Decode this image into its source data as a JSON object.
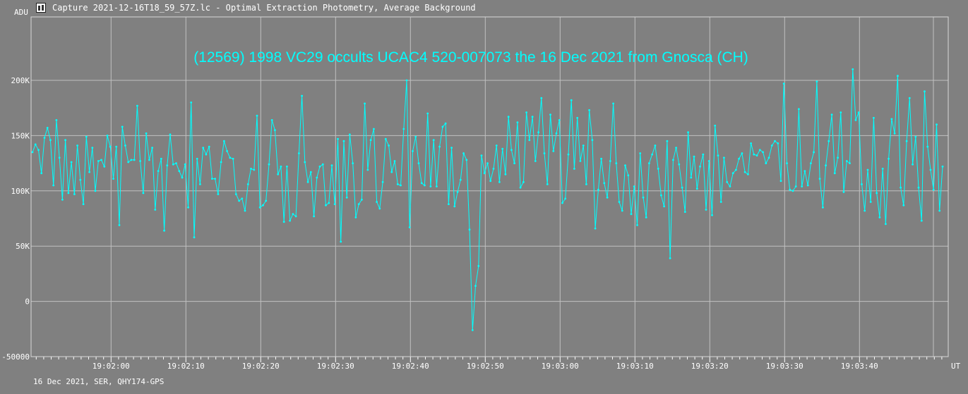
{
  "window": {
    "title": "Capture 2021-12-16T18_59_57Z.lc - Optimal Extraction Photometry, Average Background",
    "icon": "app-logo-icon"
  },
  "colors": {
    "background": "#808080",
    "grid": "#c0c0c0",
    "series": "#00ffff",
    "text": "#ffffff"
  },
  "footer": "16 Dec 2021, SER, QHY174-GPS",
  "chart_data": {
    "type": "line",
    "title": "(12569) 1998 VC29 occults UCAC4 520-007073 the 16 Dec 2021 from Gnosca (CH)",
    "ylabel": "ADU",
    "xlabel": "UT",
    "ylim": [
      -50000,
      255000
    ],
    "xlim": [
      0,
      244
    ],
    "y_ticks": [
      {
        "v": -50000,
        "label": "-50000"
      },
      {
        "v": 0,
        "label": "0"
      },
      {
        "v": 50000,
        "label": "50K"
      },
      {
        "v": 100000,
        "label": "100K"
      },
      {
        "v": 150000,
        "label": "150K"
      },
      {
        "v": 200000,
        "label": "200K"
      }
    ],
    "x_ticks": [
      {
        "v": 21,
        "label": "19:02:00"
      },
      {
        "v": 41,
        "label": "19:02:10"
      },
      {
        "v": 61,
        "label": "19:02:20"
      },
      {
        "v": 81,
        "label": "19:02:30"
      },
      {
        "v": 101,
        "label": "19:02:40"
      },
      {
        "v": 121,
        "label": "19:02:50"
      },
      {
        "v": 141,
        "label": "19:03:00"
      },
      {
        "v": 161,
        "label": "19:03:10"
      },
      {
        "v": 181,
        "label": "19:03:20"
      },
      {
        "v": 201,
        "label": "19:03:30"
      },
      {
        "v": 221,
        "label": "19:03:40"
      }
    ],
    "x_minor_ticks": [
      1,
      3,
      5,
      7,
      9,
      11,
      13,
      15,
      17,
      19,
      23,
      25,
      27,
      29,
      31,
      33,
      35,
      37,
      39,
      43,
      45,
      47,
      49,
      51,
      53,
      55,
      57,
      59,
      63,
      65,
      67,
      69,
      71,
      73,
      75,
      77,
      79,
      83,
      85,
      87,
      89,
      91,
      93,
      95,
      97,
      99,
      103,
      105,
      107,
      109,
      111,
      113,
      115,
      117,
      119,
      123,
      125,
      127,
      129,
      131,
      133,
      135,
      137,
      139,
      143,
      145,
      147,
      149,
      151,
      153,
      155,
      157,
      159,
      163,
      165,
      167,
      169,
      171,
      173,
      175,
      177,
      179,
      183,
      185,
      187,
      189,
      191,
      193,
      195,
      197,
      199,
      203,
      205,
      207,
      209,
      211,
      213,
      215,
      217,
      219,
      223,
      225,
      227,
      229,
      231,
      233,
      235,
      237,
      239,
      241,
      243
    ],
    "series": [
      {
        "values": [
          135000,
          142000,
          137000,
          116000,
          148000,
          157000,
          146000,
          105000,
          164000,
          130000,
          92000,
          146000,
          98000,
          126000,
          97000,
          141000,
          110000,
          88000,
          149000,
          117000,
          139000,
          100000,
          127000,
          128000,
          122000,
          150000,
          140000,
          111000,
          140000,
          69000,
          158000,
          141000,
          126000,
          128000,
          128000,
          177000,
          127000,
          98000,
          152000,
          128000,
          139000,
          83000,
          118000,
          129000,
          64000,
          123000,
          151000,
          124000,
          125000,
          118000,
          112000,
          124000,
          85000,
          180000,
          58000,
          129000,
          106000,
          139000,
          133000,
          140000,
          111000,
          111000,
          97000,
          126000,
          145000,
          136000,
          130000,
          129000,
          97000,
          91000,
          93000,
          82000,
          106000,
          120000,
          119000,
          168000,
          85000,
          87000,
          91000,
          124000,
          164000,
          155000,
          115000,
          122000,
          72000,
          122000,
          73000,
          79000,
          77000,
          134000,
          186000,
          126000,
          108000,
          117000,
          77000,
          112000,
          122000,
          124000,
          87000,
          89000,
          123000,
          88000,
          147000,
          54000,
          145000,
          94000,
          151000,
          125000,
          76000,
          88000,
          92000,
          179000,
          119000,
          146000,
          156000,
          90000,
          84000,
          108000,
          147000,
          141000,
          117000,
          127000,
          106000,
          105000,
          156000,
          200000,
          67000,
          136000,
          149000,
          125000,
          107000,
          105000,
          170000,
          104000,
          146000,
          104000,
          140000,
          158000,
          161000,
          88000,
          139000,
          86000,
          99000,
          110000,
          134000,
          128000,
          65000,
          -26000,
          14000,
          32000,
          132000,
          116000,
          125000,
          109000,
          120000,
          141000,
          108000,
          138000,
          115000,
          167000,
          137000,
          125000,
          162000,
          103000,
          108000,
          171000,
          146000,
          167000,
          127000,
          153000,
          184000,
          134000,
          106000,
          169000,
          136000,
          152000,
          164000,
          89000,
          93000,
          133000,
          182000,
          120000,
          166000,
          127000,
          141000,
          106000,
          173000,
          146000,
          66000,
          101000,
          129000,
          107000,
          94000,
          127000,
          179000,
          125000,
          90000,
          82000,
          123000,
          114000,
          79000,
          104000,
          69000,
          134000,
          94000,
          76000,
          125000,
          133000,
          141000,
          120000,
          96000,
          86000,
          145000,
          39000,
          128000,
          139000,
          124000,
          103000,
          81000,
          153000,
          112000,
          131000,
          102000,
          122000,
          133000,
          83000,
          127000,
          78000,
          159000,
          132000,
          90000,
          130000,
          108000,
          104000,
          116000,
          119000,
          129000,
          134000,
          117000,
          115000,
          143000,
          133000,
          132000,
          137000,
          135000,
          125000,
          130000,
          141000,
          145000,
          143000,
          109000,
          197000,
          125000,
          101000,
          100000,
          104000,
          174000,
          104000,
          118000,
          105000,
          125000,
          135000,
          199000,
          111000,
          85000,
          123000,
          145000,
          169000,
          116000,
          130000,
          171000,
          99000,
          127000,
          125000,
          210000,
          164000,
          171000,
          106000,
          82000,
          119000,
          90000,
          166000,
          98000,
          76000,
          120000,
          70000,
          129000,
          165000,
          152000,
          204000,
          103000,
          87000,
          145000,
          184000,
          124000,
          149000,
          103000,
          73000,
          190000,
          140000,
          119000,
          101000,
          160000,
          82000,
          122000
        ]
      }
    ]
  }
}
